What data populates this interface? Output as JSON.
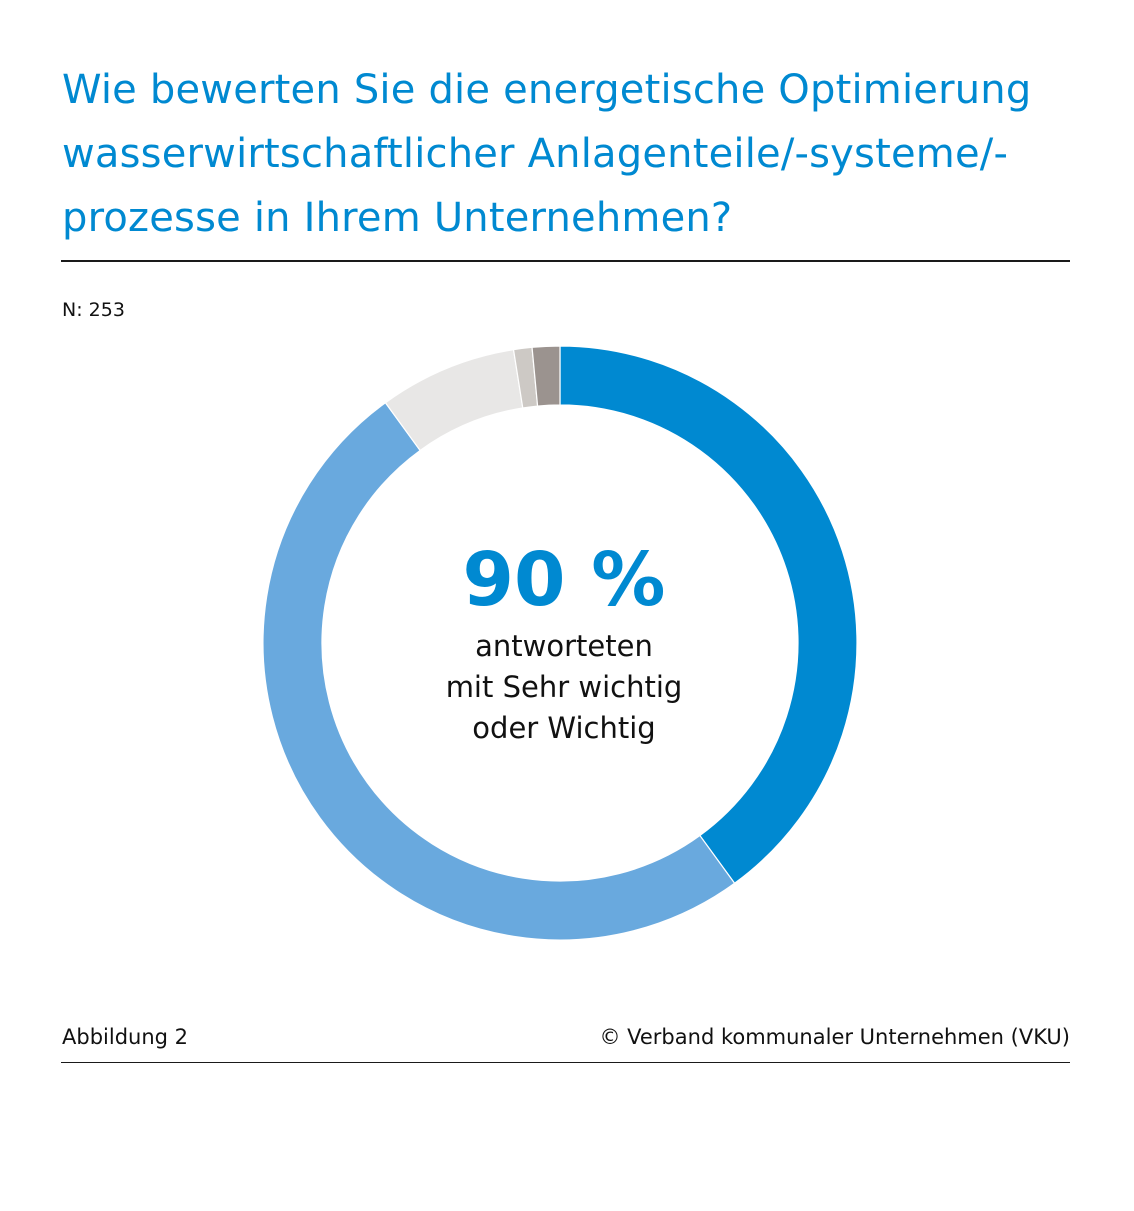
{
  "title": "Wie bewerten Sie die energetische Optimierung wasserwirtschaftlicher Anlagenteile/-systeme/-prozesse in Ihrem Unternehmen?",
  "sample_size": "N: 253",
  "center": {
    "headline": "90 %",
    "lines": [
      "antworteten",
      "mit Sehr wichtig",
      "oder Wichtig"
    ]
  },
  "footer": {
    "figure_label": "Abbildung 2",
    "copyright": "© Verband kommunaler Unternehmen (VKU)"
  },
  "chart_data": {
    "type": "pie",
    "style": "donut",
    "start_angle_deg": 0,
    "direction": "clockwise",
    "segments": [
      {
        "value": 40,
        "color": "#0089d1"
      },
      {
        "value": 50,
        "color": "#69a9de"
      },
      {
        "value": 7.5,
        "color": "#e8e7e6"
      },
      {
        "value": 1,
        "color": "#cdc9c5"
      },
      {
        "value": 1.5,
        "color": "#9b938f"
      }
    ]
  }
}
